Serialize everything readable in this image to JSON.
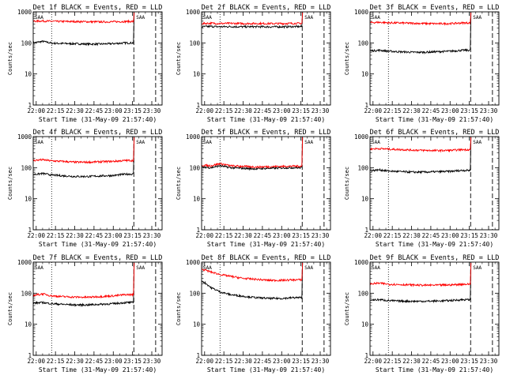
{
  "figure": {
    "colors": {
      "events": "#000000",
      "lld": "#ff0000",
      "axes": "#000000",
      "background": "#ffffff"
    },
    "panel_title_suffix": "BLACK = Events, RED = LLD",
    "xlabel": "Start Time (31-May-09 21:57:40)",
    "ylabel": "Counts/sec",
    "x_tick_labels": [
      "22:00",
      "22:15",
      "22:30",
      "22:45",
      "23:00",
      "23:15",
      "23:30"
    ],
    "y_tick_labels": [
      "1",
      "10",
      "100",
      "1000"
    ],
    "saa_marker_label": "SAA"
  },
  "chart_data": [
    {
      "type": "line",
      "title": "Det 1f BLACK = Events, RED = LLD",
      "xlabel": "Start Time (31-May-09 21:57:40)",
      "ylabel": "Counts/sec",
      "x_range": [
        "21:57:40",
        "23:38:00"
      ],
      "ylim": [
        1,
        1000
      ],
      "y_scale": "log",
      "vlines": {
        "dotted": [
          "22:12"
        ],
        "dashed": [
          "23:16",
          "23:33"
        ]
      },
      "series": [
        {
          "name": "Events",
          "color": "#000000",
          "x": [
            "21:57:40",
            "22:05",
            "22:12",
            "22:20",
            "22:30",
            "22:40",
            "22:50",
            "23:00",
            "23:10"
          ],
          "values": [
            100,
            112,
            98,
            96,
            94,
            92,
            92,
            95,
            100
          ]
        },
        {
          "name": "LLD",
          "color": "#ff0000",
          "x": [
            "21:57:40",
            "22:05",
            "22:12",
            "22:20",
            "22:30",
            "22:40",
            "22:50",
            "23:00",
            "23:10"
          ],
          "values": [
            500,
            510,
            495,
            490,
            488,
            480,
            475,
            480,
            490
          ]
        }
      ]
    },
    {
      "type": "line",
      "title": "Det 2f BLACK = Events, RED = LLD",
      "xlabel": "Start Time (31-May-09 21:57:40)",
      "ylabel": "Counts/sec",
      "x_range": [
        "21:57:40",
        "23:38:00"
      ],
      "ylim": [
        1,
        1000
      ],
      "y_scale": "log",
      "vlines": {
        "dotted": [
          "22:12"
        ],
        "dashed": [
          "23:16",
          "23:33"
        ]
      },
      "series": [
        {
          "name": "Events",
          "color": "#000000",
          "x": [
            "21:57:40",
            "22:05",
            "22:12",
            "22:20",
            "22:30",
            "22:40",
            "22:50",
            "23:00",
            "23:10"
          ],
          "values": [
            330,
            340,
            330,
            335,
            330,
            332,
            330,
            330,
            335
          ]
        },
        {
          "name": "LLD",
          "color": "#ff0000",
          "x": [
            "21:57:40",
            "22:05",
            "22:12",
            "22:20",
            "22:30",
            "22:40",
            "22:50",
            "23:00",
            "23:10"
          ],
          "values": [
            420,
            430,
            420,
            425,
            420,
            422,
            420,
            420,
            425
          ]
        }
      ]
    },
    {
      "type": "line",
      "title": "Det 3f BLACK = Events, RED = LLD",
      "xlabel": "Start Time (31-May-09 21:57:40)",
      "ylabel": "Counts/sec",
      "x_range": [
        "21:57:40",
        "23:38:00"
      ],
      "ylim": [
        1,
        1000
      ],
      "y_scale": "log",
      "vlines": {
        "dotted": [
          "22:12"
        ],
        "dashed": [
          "23:16",
          "23:33"
        ]
      },
      "series": [
        {
          "name": "Events",
          "color": "#000000",
          "x": [
            "21:57:40",
            "22:05",
            "22:12",
            "22:20",
            "22:30",
            "22:40",
            "22:50",
            "23:00",
            "23:10"
          ],
          "values": [
            55,
            58,
            54,
            52,
            50,
            50,
            52,
            54,
            58
          ]
        },
        {
          "name": "LLD",
          "color": "#ff0000",
          "x": [
            "21:57:40",
            "22:05",
            "22:12",
            "22:20",
            "22:30",
            "22:40",
            "22:50",
            "23:00",
            "23:10"
          ],
          "values": [
            450,
            460,
            445,
            440,
            430,
            420,
            415,
            420,
            440
          ]
        }
      ]
    },
    {
      "type": "line",
      "title": "Det 4f BLACK = Events, RED = LLD",
      "xlabel": "Start Time (31-May-09 21:57:40)",
      "ylabel": "Counts/sec",
      "x_range": [
        "21:57:40",
        "23:38:00"
      ],
      "ylim": [
        1,
        1000
      ],
      "y_scale": "log",
      "vlines": {
        "dotted": [
          "22:12"
        ],
        "dashed": [
          "23:16",
          "23:33"
        ]
      },
      "series": [
        {
          "name": "Events",
          "color": "#000000",
          "x": [
            "21:57:40",
            "22:05",
            "22:12",
            "22:20",
            "22:30",
            "22:40",
            "22:50",
            "23:00",
            "23:10"
          ],
          "values": [
            60,
            65,
            58,
            55,
            52,
            52,
            54,
            56,
            62
          ]
        },
        {
          "name": "LLD",
          "color": "#ff0000",
          "x": [
            "21:57:40",
            "22:05",
            "22:12",
            "22:20",
            "22:30",
            "22:40",
            "22:50",
            "23:00",
            "23:10"
          ],
          "values": [
            170,
            180,
            165,
            160,
            150,
            150,
            155,
            160,
            170
          ]
        }
      ]
    },
    {
      "type": "line",
      "title": "Det 5f BLACK = Events, RED = LLD",
      "xlabel": "Start Time (31-May-09 21:57:40)",
      "ylabel": "Counts/sec",
      "x_range": [
        "21:57:40",
        "23:38:00"
      ],
      "ylim": [
        1,
        1000
      ],
      "y_scale": "log",
      "vlines": {
        "dotted": [
          "22:12"
        ],
        "dashed": [
          "23:16",
          "23:33"
        ]
      },
      "series": [
        {
          "name": "Events",
          "color": "#000000",
          "x": [
            "21:57:40",
            "22:05",
            "22:12",
            "22:20",
            "22:30",
            "22:40",
            "22:50",
            "23:00",
            "23:10"
          ],
          "values": [
            105,
            100,
            115,
            100,
            95,
            92,
            95,
            98,
            100
          ]
        },
        {
          "name": "LLD",
          "color": "#ff0000",
          "x": [
            "21:57:40",
            "22:05",
            "22:12",
            "22:20",
            "22:30",
            "22:40",
            "22:50",
            "23:00",
            "23:10"
          ],
          "values": [
            120,
            115,
            135,
            115,
            110,
            105,
            108,
            110,
            112
          ]
        }
      ]
    },
    {
      "type": "line",
      "title": "Det 6f BLACK = Events, RED = LLD",
      "xlabel": "Start Time (31-May-09 21:57:40)",
      "ylabel": "Counts/sec",
      "x_range": [
        "21:57:40",
        "23:38:00"
      ],
      "ylim": [
        1,
        1000
      ],
      "y_scale": "log",
      "vlines": {
        "dotted": [
          "22:12"
        ],
        "dashed": [
          "23:16",
          "23:33"
        ]
      },
      "series": [
        {
          "name": "Events",
          "color": "#000000",
          "x": [
            "21:57:40",
            "22:05",
            "22:12",
            "22:20",
            "22:30",
            "22:40",
            "22:50",
            "23:00",
            "23:10"
          ],
          "values": [
            80,
            85,
            78,
            75,
            72,
            72,
            74,
            76,
            82
          ]
        },
        {
          "name": "LLD",
          "color": "#ff0000",
          "x": [
            "21:57:40",
            "22:05",
            "22:12",
            "22:20",
            "22:30",
            "22:40",
            "22:50",
            "23:00",
            "23:10"
          ],
          "values": [
            400,
            410,
            395,
            385,
            370,
            360,
            355,
            360,
            380
          ]
        }
      ]
    },
    {
      "type": "line",
      "title": "Det 7f BLACK = Events, RED = LLD",
      "xlabel": "Start Time (31-May-09 21:57:40)",
      "ylabel": "Counts/sec",
      "x_range": [
        "21:57:40",
        "23:38:00"
      ],
      "ylim": [
        1,
        1000
      ],
      "y_scale": "log",
      "vlines": {
        "dotted": [
          "22:12"
        ],
        "dashed": [
          "23:16",
          "23:33"
        ]
      },
      "series": [
        {
          "name": "Events",
          "color": "#000000",
          "x": [
            "21:57:40",
            "22:05",
            "22:12",
            "22:20",
            "22:30",
            "22:40",
            "22:50",
            "23:00",
            "23:10"
          ],
          "values": [
            48,
            50,
            46,
            44,
            42,
            42,
            44,
            46,
            50
          ]
        },
        {
          "name": "LLD",
          "color": "#ff0000",
          "x": [
            "21:57:40",
            "22:05",
            "22:12",
            "22:20",
            "22:30",
            "22:40",
            "22:50",
            "23:00",
            "23:10"
          ],
          "values": [
            85,
            95,
            82,
            78,
            75,
            74,
            78,
            82,
            90
          ]
        }
      ]
    },
    {
      "type": "line",
      "title": "Det 8f BLACK = Events, RED = LLD",
      "xlabel": "Start Time (31-May-09 21:57:40)",
      "ylabel": "Counts/sec",
      "x_range": [
        "21:57:40",
        "23:38:00"
      ],
      "ylim": [
        1,
        1000
      ],
      "y_scale": "log",
      "vlines": {
        "dotted": [
          "22:12"
        ],
        "dashed": [
          "23:16",
          "23:33"
        ]
      },
      "series": [
        {
          "name": "Events",
          "color": "#000000",
          "x": [
            "21:57:40",
            "22:05",
            "22:12",
            "22:20",
            "22:30",
            "22:40",
            "22:50",
            "23:00",
            "23:10"
          ],
          "values": [
            250,
            150,
            110,
            90,
            80,
            72,
            68,
            68,
            72
          ]
        },
        {
          "name": "LLD",
          "color": "#ff0000",
          "x": [
            "21:57:40",
            "22:05",
            "22:12",
            "22:20",
            "22:30",
            "22:40",
            "22:50",
            "23:00",
            "23:10"
          ],
          "values": [
            600,
            480,
            400,
            350,
            300,
            280,
            260,
            260,
            270
          ]
        }
      ]
    },
    {
      "type": "line",
      "title": "Det 9f BLACK = Events, RED = LLD",
      "xlabel": "Start Time (31-May-09 21:57:40)",
      "ylabel": "Counts/sec",
      "x_range": [
        "21:57:40",
        "23:38:00"
      ],
      "ylim": [
        1,
        1000
      ],
      "y_scale": "log",
      "vlines": {
        "dotted": [
          "22:12"
        ],
        "dashed": [
          "23:16",
          "23:33"
        ]
      },
      "series": [
        {
          "name": "Events",
          "color": "#000000",
          "x": [
            "21:57:40",
            "22:05",
            "22:12",
            "22:20",
            "22:30",
            "22:40",
            "22:50",
            "23:00",
            "23:10"
          ],
          "values": [
            60,
            62,
            58,
            56,
            55,
            55,
            56,
            58,
            62
          ]
        },
        {
          "name": "LLD",
          "color": "#ff0000",
          "x": [
            "21:57:40",
            "22:05",
            "22:12",
            "22:20",
            "22:30",
            "22:40",
            "22:50",
            "23:00",
            "23:10"
          ],
          "values": [
            200,
            210,
            195,
            190,
            185,
            180,
            182,
            185,
            195
          ]
        }
      ]
    }
  ]
}
